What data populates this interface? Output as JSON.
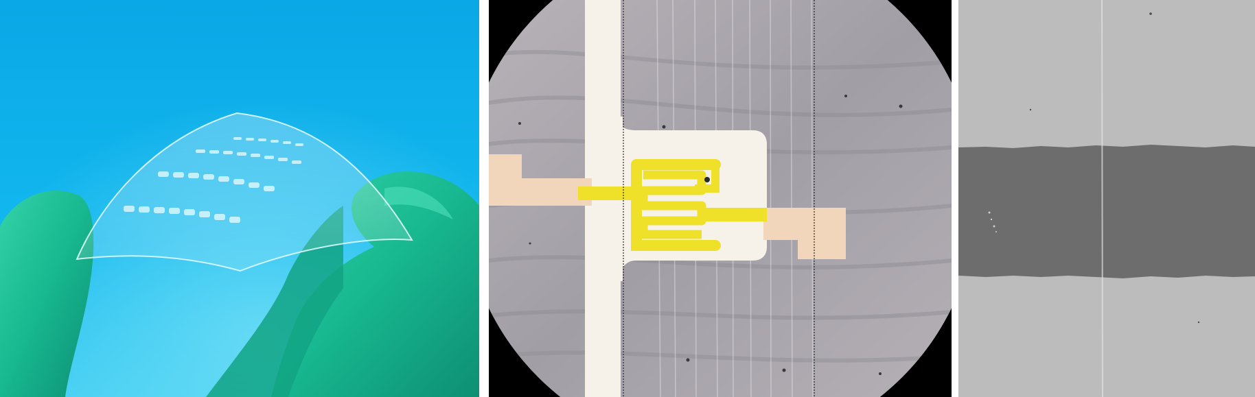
{
  "figure": {
    "panels": [
      {
        "id": "a",
        "subject": "flexible-transparent-film-held-by-gloved-fingers"
      },
      {
        "id": "b",
        "subject": "optical-micrograph-yellow-serpentine-electrode"
      },
      {
        "id": "c",
        "subject": "grayscale-sem-image-channel-gap"
      }
    ]
  },
  "colors": {
    "background_blue": "#0fb4ea",
    "glove_green": "#16b98f",
    "electrode_yellow": "#f1e22c",
    "pad_beige": "#f3d9bf",
    "substrate_gray": "#a8a6ab",
    "sem_light": "#b9b9b9",
    "sem_dark": "#6d6d6d"
  }
}
